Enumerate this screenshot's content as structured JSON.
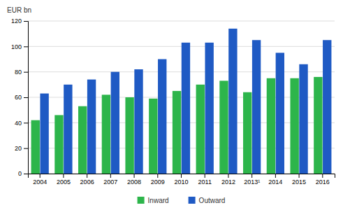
{
  "chart_data": {
    "type": "bar",
    "categories": [
      "2004",
      "2005",
      "2006",
      "2007",
      "2008",
      "2009",
      "2010",
      "2011",
      "2012",
      "2013¹",
      "2014",
      "2015",
      "2016"
    ],
    "series": [
      {
        "name": "Inward",
        "color": "#2db54b",
        "values": [
          42,
          46,
          53,
          62,
          60,
          59,
          65,
          70,
          73,
          64,
          75,
          75,
          76
        ]
      },
      {
        "name": "Outward",
        "color": "#1f5ac4",
        "values": [
          63,
          70,
          74,
          80,
          82,
          90,
          103,
          103,
          114,
          105,
          95,
          86,
          105
        ]
      }
    ],
    "ylabel": "EUR bn",
    "ylim": [
      0,
      120
    ],
    "yticks": [
      0,
      20,
      40,
      60,
      80,
      100,
      120
    ],
    "grid": true,
    "legend": "bottom"
  }
}
